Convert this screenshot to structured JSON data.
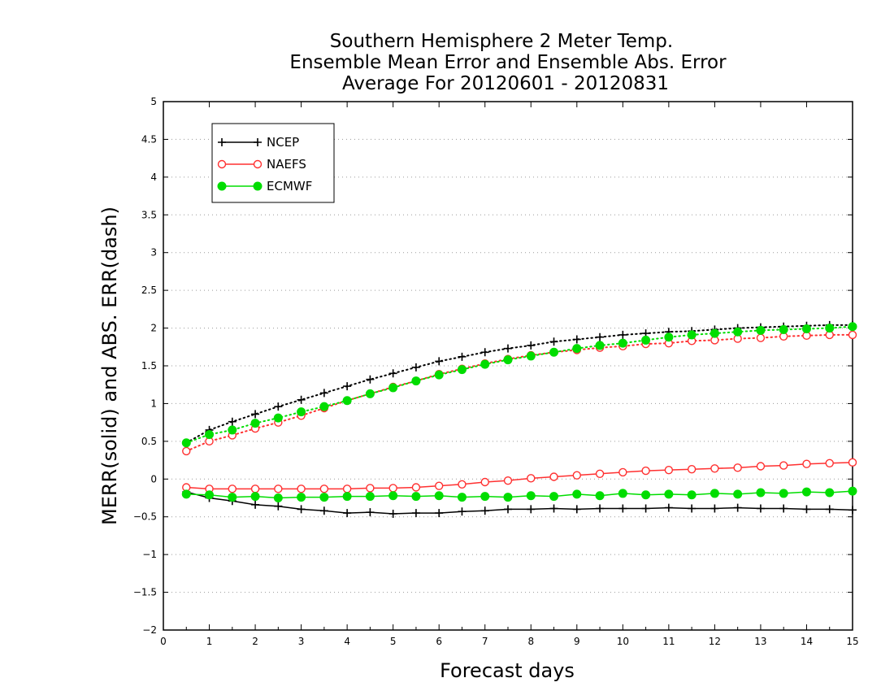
{
  "chart_data": {
    "type": "line",
    "title": [
      "Southern Hemisphere 2 Meter Temp.",
      "Ensemble Mean Error and Ensemble Abs. Error",
      "Average For 20120601 - 20120831"
    ],
    "xlabel": "Forecast days",
    "ylabel": "MERR(solid) and ABS. ERR(dash)",
    "xlim": [
      0,
      15
    ],
    "ylim": [
      -2,
      5
    ],
    "xticks": [
      0,
      1,
      2,
      3,
      4,
      5,
      6,
      7,
      8,
      9,
      10,
      11,
      12,
      13,
      14,
      15
    ],
    "yticks": [
      -2,
      -1.5,
      -1,
      -0.5,
      0,
      0.5,
      1,
      1.5,
      2,
      2.5,
      3,
      3.5,
      4,
      4.5,
      5
    ],
    "ytick_labels": [
      "−2",
      "−1.5",
      "−1",
      "−0.5",
      "0",
      "0.5",
      "1",
      "1.5",
      "2",
      "2.5",
      "3",
      "3.5",
      "4",
      "4.5",
      "5"
    ],
    "grid": "horizontal dotted",
    "legend_position": "top-left",
    "x": [
      0.5,
      1,
      1.5,
      2,
      2.5,
      3,
      3.5,
      4,
      4.5,
      5,
      5.5,
      6,
      6.5,
      7,
      7.5,
      8,
      8.5,
      9,
      9.5,
      10,
      10.5,
      11,
      11.5,
      12,
      12.5,
      13,
      13.5,
      14,
      14.5,
      15
    ],
    "series": [
      {
        "name": "NCEP",
        "color": "#000000",
        "marker": "plus",
        "style": "solid",
        "values": [
          -0.17,
          -0.25,
          -0.29,
          -0.34,
          -0.36,
          -0.4,
          -0.42,
          -0.45,
          -0.44,
          -0.46,
          -0.45,
          -0.45,
          -0.43,
          -0.42,
          -0.4,
          -0.4,
          -0.39,
          -0.4,
          -0.39,
          -0.39,
          -0.39,
          -0.38,
          -0.39,
          -0.39,
          -0.38,
          -0.39,
          -0.39,
          -0.4,
          -0.4,
          -0.41
        ]
      },
      {
        "name": "NAEFS",
        "color": "#ff0000",
        "marker": "open-circle",
        "style": "solid",
        "values": [
          -0.11,
          -0.13,
          -0.13,
          -0.13,
          -0.13,
          -0.13,
          -0.13,
          -0.13,
          -0.12,
          -0.12,
          -0.11,
          -0.09,
          -0.07,
          -0.04,
          -0.02,
          0.01,
          0.03,
          0.05,
          0.07,
          0.09,
          0.11,
          0.12,
          0.13,
          0.14,
          0.15,
          0.17,
          0.18,
          0.2,
          0.21,
          0.22
        ]
      },
      {
        "name": "ECMWF",
        "color": "#00dd00",
        "marker": "filled-circle",
        "style": "solid",
        "values": [
          -0.2,
          -0.21,
          -0.24,
          -0.23,
          -0.25,
          -0.24,
          -0.24,
          -0.23,
          -0.23,
          -0.22,
          -0.23,
          -0.22,
          -0.24,
          -0.23,
          -0.24,
          -0.22,
          -0.23,
          -0.2,
          -0.22,
          -0.19,
          -0.21,
          -0.2,
          -0.21,
          -0.19,
          -0.2,
          -0.18,
          -0.19,
          -0.17,
          -0.18,
          -0.16
        ]
      },
      {
        "name": "NCEP",
        "color": "#000000",
        "marker": "plus",
        "style": "dotted",
        "values": [
          0.48,
          0.65,
          0.76,
          0.86,
          0.96,
          1.05,
          1.14,
          1.23,
          1.32,
          1.4,
          1.48,
          1.56,
          1.62,
          1.68,
          1.73,
          1.77,
          1.82,
          1.85,
          1.88,
          1.91,
          1.93,
          1.95,
          1.96,
          1.98,
          2.0,
          2.01,
          2.02,
          2.03,
          2.04,
          2.04
        ]
      },
      {
        "name": "NAEFS",
        "color": "#ff0000",
        "marker": "open-circle",
        "style": "dotted",
        "values": [
          0.37,
          0.5,
          0.58,
          0.67,
          0.75,
          0.84,
          0.94,
          1.04,
          1.13,
          1.22,
          1.3,
          1.39,
          1.46,
          1.53,
          1.59,
          1.64,
          1.68,
          1.71,
          1.74,
          1.76,
          1.79,
          1.8,
          1.83,
          1.84,
          1.86,
          1.87,
          1.89,
          1.9,
          1.91,
          1.91
        ]
      },
      {
        "name": "ECMWF",
        "color": "#00dd00",
        "marker": "filled-circle",
        "style": "dotted",
        "values": [
          0.48,
          0.59,
          0.65,
          0.74,
          0.81,
          0.89,
          0.96,
          1.04,
          1.13,
          1.21,
          1.3,
          1.38,
          1.45,
          1.52,
          1.58,
          1.63,
          1.68,
          1.73,
          1.77,
          1.8,
          1.84,
          1.88,
          1.91,
          1.93,
          1.95,
          1.97,
          1.98,
          1.99,
          2.0,
          2.02
        ]
      }
    ],
    "legend": [
      {
        "label": "NCEP",
        "color": "#000000",
        "marker": "plus"
      },
      {
        "label": "NAEFS",
        "color": "#ff0000",
        "marker": "open-circle"
      },
      {
        "label": "ECMWF",
        "color": "#00dd00",
        "marker": "filled-circle"
      }
    ]
  }
}
